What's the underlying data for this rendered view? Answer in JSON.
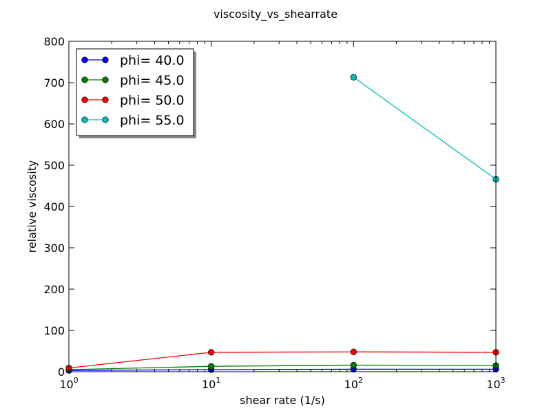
{
  "chart_data": {
    "type": "line",
    "title": "viscosity_vs_shearrate",
    "xlabel": "shear rate (1/s)",
    "ylabel": "relative viscosity",
    "xscale": "log",
    "xlim": [
      1,
      1000
    ],
    "ylim": [
      0,
      800
    ],
    "x_ticks": [
      {
        "value": 1,
        "base": "10",
        "exp": "0"
      },
      {
        "value": 10,
        "base": "10",
        "exp": "1"
      },
      {
        "value": 100,
        "base": "10",
        "exp": "2"
      },
      {
        "value": 1000,
        "base": "10",
        "exp": "3"
      }
    ],
    "y_ticks": [
      "0",
      "100",
      "200",
      "300",
      "400",
      "500",
      "600",
      "700",
      "800"
    ],
    "grid": false,
    "legend_position": "top-left",
    "series": [
      {
        "name": "phi= 40.0",
        "color": "#0000ff",
        "points": [
          [
            1,
            3
          ],
          [
            10,
            5
          ],
          [
            100,
            6
          ],
          [
            1000,
            6
          ]
        ]
      },
      {
        "name": "phi= 45.0",
        "color": "#008000",
        "points": [
          [
            1,
            5
          ],
          [
            10,
            13
          ],
          [
            100,
            16
          ],
          [
            1000,
            15
          ]
        ]
      },
      {
        "name": "phi= 50.0",
        "color": "#ff0000",
        "points": [
          [
            1,
            9
          ],
          [
            10,
            47
          ],
          [
            100,
            48
          ],
          [
            1000,
            47
          ]
        ]
      },
      {
        "name": "phi= 55.0",
        "color": "#00bfbf",
        "points": [
          [
            100,
            713
          ],
          [
            1000,
            466
          ]
        ]
      }
    ]
  }
}
